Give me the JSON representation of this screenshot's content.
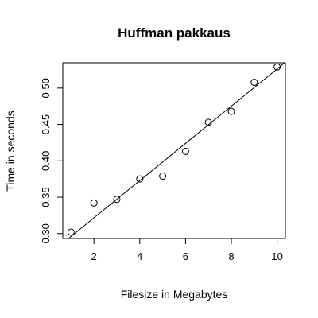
{
  "chart_data": {
    "type": "scatter",
    "title": "Huffman pakkaus",
    "xlabel": "Filesize in Megabytes",
    "ylabel": "Time in seconds",
    "xlim": [
      0.64,
      10.36
    ],
    "ylim": [
      0.2932,
      0.5348
    ],
    "x_ticks": [
      2,
      4,
      6,
      8,
      10
    ],
    "y_ticks": [
      0.3,
      0.35,
      0.4,
      0.45,
      0.5
    ],
    "x_tick_labels": [
      "2",
      "4",
      "6",
      "8",
      "10"
    ],
    "y_tick_labels": [
      "0.30",
      "0.35",
      "0.40",
      "0.45",
      "0.50"
    ],
    "points": [
      {
        "x": 1,
        "y": 0.302
      },
      {
        "x": 2,
        "y": 0.342
      },
      {
        "x": 3,
        "y": 0.347
      },
      {
        "x": 4,
        "y": 0.375
      },
      {
        "x": 5,
        "y": 0.379
      },
      {
        "x": 6,
        "y": 0.413
      },
      {
        "x": 7,
        "y": 0.453
      },
      {
        "x": 8,
        "y": 0.468
      },
      {
        "x": 9,
        "y": 0.508
      },
      {
        "x": 10,
        "y": 0.529
      }
    ],
    "fit_line": {
      "intercept": 0.2704,
      "slope": 0.0256
    },
    "grid": false,
    "legend": "none"
  }
}
